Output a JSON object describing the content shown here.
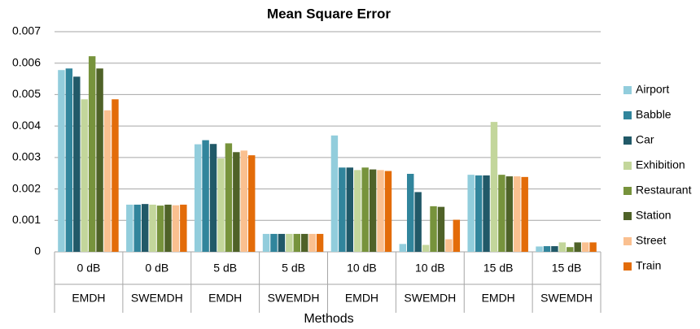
{
  "chart_data": {
    "type": "bar",
    "title": "Mean Square Error",
    "x_label": "Methods",
    "categories": [
      "0 dB",
      "0 dB",
      "5 dB",
      "5 dB",
      "10 dB",
      "10 dB",
      "15 dB",
      "15 dB"
    ],
    "category_groups": [
      "EMDH",
      "SWEMDH",
      "EMDH",
      "SWEMDH",
      "EMDH",
      "SWEMDH",
      "EMDH",
      "SWEMDH"
    ],
    "series": [
      {
        "name": "Airport",
        "color": "#92cddc",
        "values": [
          0.00578,
          0.0015,
          0.00342,
          0.00057,
          0.0037,
          0.00025,
          0.00245,
          0.00017
        ]
      },
      {
        "name": "Babble",
        "color": "#31859c",
        "values": [
          0.00583,
          0.0015,
          0.00355,
          0.00057,
          0.00268,
          0.00248,
          0.00243,
          0.00018
        ]
      },
      {
        "name": "Car",
        "color": "#215968",
        "values": [
          0.00557,
          0.00152,
          0.00343,
          0.00057,
          0.00268,
          0.0019,
          0.00243,
          0.00018
        ]
      },
      {
        "name": "Exhibition",
        "color": "#c3d69b",
        "values": [
          0.00485,
          0.0015,
          0.00297,
          0.00057,
          0.0026,
          0.00022,
          0.00413,
          0.0003
        ]
      },
      {
        "name": "Restaurant",
        "color": "#77933c",
        "values": [
          0.00622,
          0.00147,
          0.00345,
          0.00057,
          0.00268,
          0.00145,
          0.00245,
          0.00015
        ]
      },
      {
        "name": "Station",
        "color": "#4f6228",
        "values": [
          0.00583,
          0.0015,
          0.00317,
          0.00057,
          0.00262,
          0.00143,
          0.0024,
          0.0003
        ]
      },
      {
        "name": "Street",
        "color": "#fac090",
        "values": [
          0.0045,
          0.00148,
          0.00322,
          0.00057,
          0.0026,
          0.0004,
          0.0024,
          0.0003
        ]
      },
      {
        "name": "Train",
        "color": "#e36c09",
        "values": [
          0.00485,
          0.0015,
          0.00307,
          0.00057,
          0.00257,
          0.00102,
          0.00238,
          0.0003
        ]
      }
    ],
    "ylim": [
      0,
      0.007
    ],
    "yticks": [
      0,
      0.001,
      0.002,
      0.003,
      0.004,
      0.005,
      0.006,
      0.007
    ],
    "grid": true,
    "legend": "right"
  }
}
